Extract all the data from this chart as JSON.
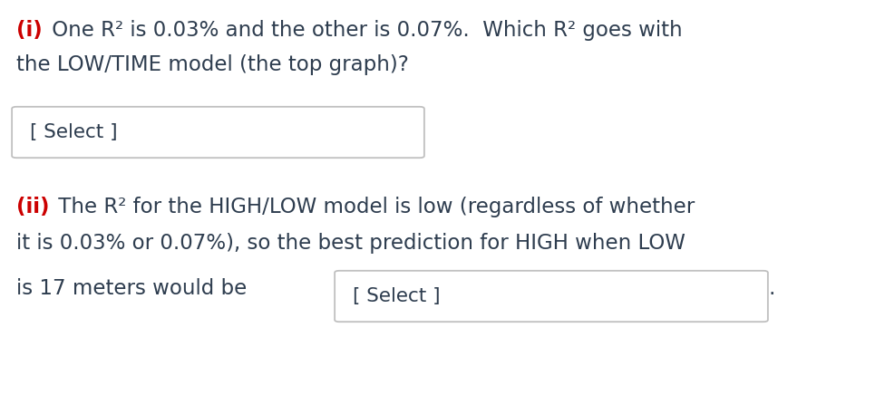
{
  "background_color": "#ffffff",
  "red_color": "#cc0000",
  "text_color": "#2e3d4f",
  "label_i": "(i)",
  "line1_i": " One R² is 0.03% and the other is 0.07%.  Which R² goes with",
  "line2_i": "the LOW/TIME model (the top graph)?",
  "select1_text": "[ Select ]",
  "label_ii": "(ii)",
  "line1_ii": " The R² for the HIGH/LOW model is low (regardless of whether",
  "line2_ii": "it is 0.03% or 0.07%), so the best prediction for HIGH when LOW",
  "line3_pre": "is 17 meters would be",
  "select2_text": "[ Select ]",
  "line3_post": ".",
  "fs": 16.5,
  "fig_w": 9.76,
  "fig_h": 4.36,
  "dpi": 100
}
